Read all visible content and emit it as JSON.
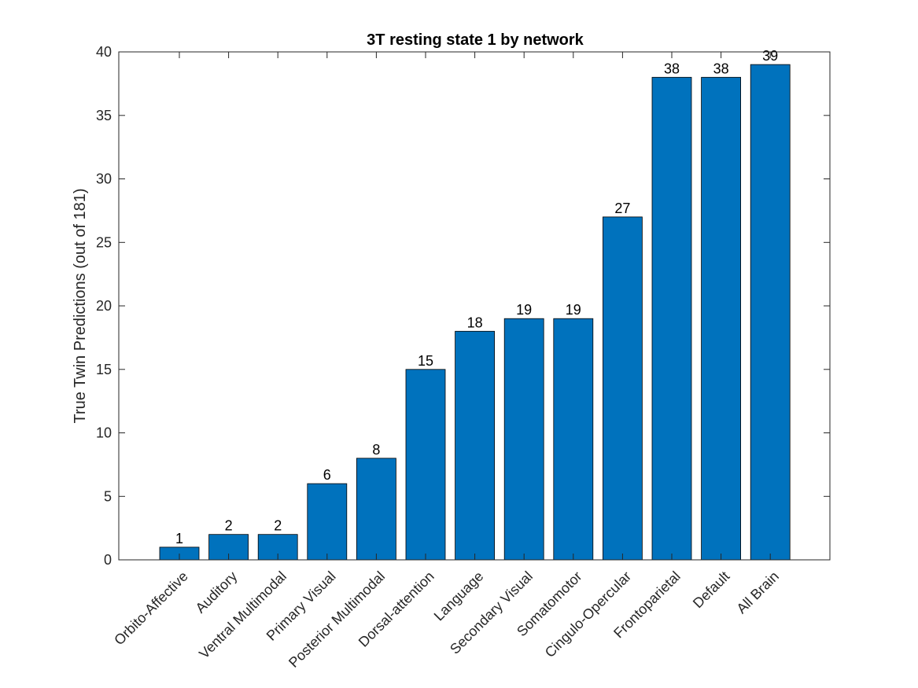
{
  "chart_data": {
    "type": "bar",
    "title": "3T resting state 1 by network",
    "xlabel": "",
    "ylabel": "True Twin Predictions (out of 181)",
    "categories": [
      "Orbito-Affective",
      "Auditory",
      "Ventral Multimodal",
      "Primary Visual",
      "Posterior Multimodal",
      "Dorsal-attention",
      "Language",
      "Secondary Visual",
      "Somatomotor",
      "Cingulo-Opercular",
      "Frontoparietal",
      "Default",
      "All Brain"
    ],
    "values": [
      1,
      2,
      2,
      6,
      8,
      15,
      18,
      19,
      19,
      27,
      38,
      38,
      39
    ],
    "data_labels": [
      "1",
      "2",
      "2",
      "6",
      "8",
      "15",
      "18",
      "19",
      "19",
      "27",
      "38",
      "38",
      "39"
    ],
    "ylim": [
      0,
      40
    ],
    "yticks": [
      0,
      5,
      10,
      15,
      20,
      25,
      30,
      35,
      40
    ],
    "ytick_labels": [
      "0",
      "5",
      "10",
      "15",
      "20",
      "25",
      "30",
      "35",
      "40"
    ],
    "bar_color": "#0072BD",
    "grid": false,
    "legend": "none"
  }
}
